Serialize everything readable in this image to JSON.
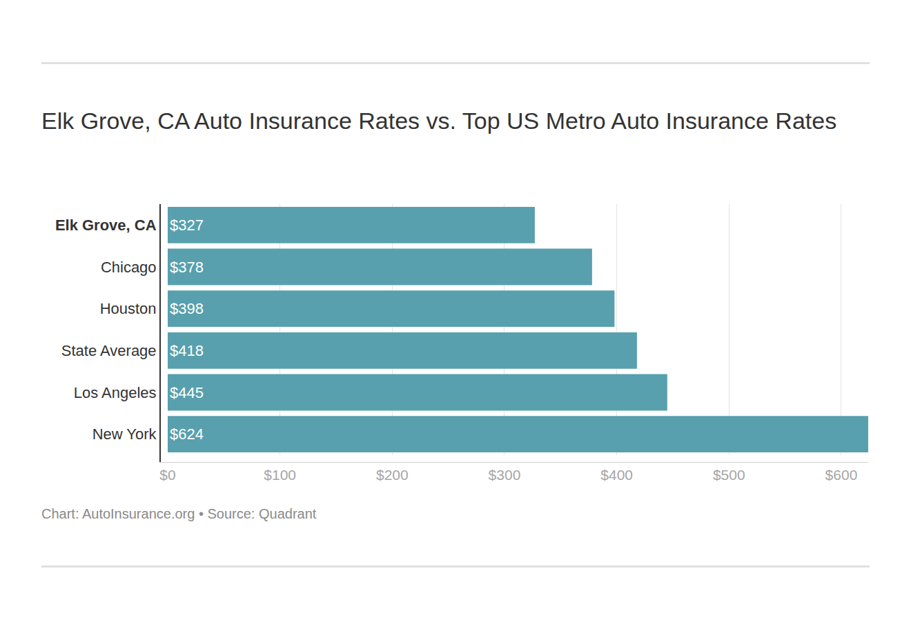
{
  "chart_data": {
    "type": "bar",
    "title": "Elk Grove, CA Auto Insurance Rates vs. Top US Metro Auto Insurance Rates",
    "source": "Chart: AutoInsurance.org • Source: Quadrant",
    "categories": [
      "Elk Grove, CA",
      "Chicago",
      "Houston",
      "State Average",
      "Los Angeles",
      "New York"
    ],
    "values": [
      327,
      378,
      398,
      418,
      445,
      624
    ],
    "value_labels": [
      "$327",
      "$378",
      "$398",
      "$418",
      "$445",
      "$624"
    ],
    "color": "#58a0ae",
    "orientation": "horizontal",
    "data_labels": true,
    "xlim": [
      0,
      624
    ],
    "xticks": [
      {
        "value": 0,
        "label": "$0"
      },
      {
        "value": 100,
        "label": "$100"
      },
      {
        "value": 200,
        "label": "$200"
      },
      {
        "value": 300,
        "label": "$300"
      },
      {
        "value": 400,
        "label": "$400"
      },
      {
        "value": 500,
        "label": "$500"
      },
      {
        "value": 600,
        "label": "$600"
      }
    ],
    "grid": true
  }
}
